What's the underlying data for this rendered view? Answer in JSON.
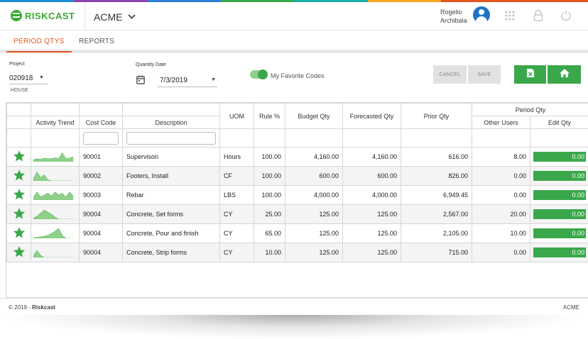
{
  "brand_colors": [
    "#1f8fd8",
    "#8e44ad",
    "#2e7dd7",
    "#3aa84a",
    "#1bb0a7",
    "#f5a623",
    "#e35520",
    "#e35520"
  ],
  "header": {
    "logo_text": "RISKCAST",
    "company": "ACME",
    "user_first": "Rogelio",
    "user_last": "Archibala"
  },
  "tabs": [
    {
      "label": "PERIOD QTYS",
      "active": true
    },
    {
      "label": "REPORTS",
      "active": false
    }
  ],
  "filters": {
    "project_label": "Project",
    "project_value": "020918",
    "project_sub": "HOUSE",
    "date_label": "Quantity Date",
    "date_value": "7/3/2019",
    "favorites_label": "My Favorite Codes",
    "favorites_on": true,
    "cancel_label": "CANCEL",
    "save_label": "SAVE"
  },
  "table": {
    "headers": {
      "activity_trend": "Activity Trend",
      "cost_code": "Cost Code",
      "description": "Description",
      "uom": "UOM",
      "rule": "Rule %",
      "budget": "Budget Qty",
      "forecasted": "Forecasted Qty",
      "prior": "Prior Qty",
      "period_group": "Period Qty",
      "other_users": "Other Users",
      "edit": "Edit Qty"
    },
    "rows": [
      {
        "favorite": true,
        "trend": [
          0.2,
          0.3,
          0.25,
          0.35,
          0.3,
          0.3,
          0.4,
          0.3,
          0.9,
          0.3,
          0.35,
          0.5
        ],
        "cost_code": "90001",
        "description": "Supervison",
        "uom": "Hours",
        "rule": "100.00",
        "budget": "4,160.00",
        "forecasted": "4,160.00",
        "prior": "616.00",
        "other_users": "8.00",
        "edit": "0.00"
      },
      {
        "favorite": true,
        "trend": [
          0.2,
          0.9,
          0.3,
          0.6,
          0.1,
          0,
          0,
          0,
          0,
          0,
          0,
          0
        ],
        "cost_code": "90002",
        "description": "Footers, Install",
        "uom": "CF",
        "rule": "100.00",
        "budget": "600.00",
        "forecasted": "600.00",
        "prior": "826.00",
        "other_users": "0.00",
        "edit": "0.00"
      },
      {
        "favorite": true,
        "trend": [
          0.3,
          0.8,
          0.3,
          0.5,
          0.7,
          0.4,
          0.8,
          0.5,
          0.7,
          0.3,
          0.8,
          0.4
        ],
        "cost_code": "90003",
        "description": "Rebar",
        "uom": "LBS",
        "rule": "100.00",
        "budget": "4,000.00",
        "forecasted": "4,000.00",
        "prior": "6,949.45",
        "other_users": "0.00",
        "edit": "0.00"
      },
      {
        "favorite": true,
        "trend": [
          0.1,
          0.3,
          0.6,
          0.9,
          0.7,
          0.5,
          0.2,
          0,
          0,
          0,
          0,
          0
        ],
        "cost_code": "90004",
        "description": "Concrete, Set forms",
        "uom": "CY",
        "rule": "25.00",
        "budget": "125.00",
        "forecasted": "125.00",
        "prior": "2,567.00",
        "other_users": "20.00",
        "edit": "0.00"
      },
      {
        "favorite": true,
        "trend": [
          0.05,
          0.1,
          0.15,
          0.2,
          0.3,
          0.5,
          0.7,
          1.0,
          0.3,
          0,
          0,
          0
        ],
        "cost_code": "90004",
        "description": "Concrete, Pour and finish",
        "uom": "CY",
        "rule": "65.00",
        "budget": "125.00",
        "forecasted": "125.00",
        "prior": "2,105.00",
        "other_users": "10.00",
        "edit": "0.00"
      },
      {
        "favorite": true,
        "trend": [
          0.2,
          0.7,
          0.2,
          0,
          0,
          0,
          0,
          0,
          0,
          0,
          0,
          0
        ],
        "cost_code": "90004",
        "description": "Concrete, Strip forms",
        "uom": "CY",
        "rule": "10.00",
        "budget": "125.00",
        "forecasted": "125.00",
        "prior": "715.00",
        "other_users": "0.00",
        "edit": "0.00"
      }
    ]
  },
  "footer": {
    "copyright_prefix": "© 2019 - ",
    "copyright_brand": "Riskcast",
    "right": "ACME"
  }
}
